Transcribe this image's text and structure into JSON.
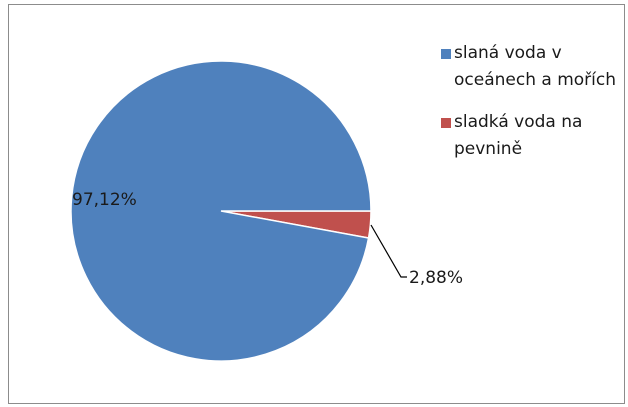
{
  "chart_data": {
    "type": "pie",
    "categories": [
      "slaná voda v oceánech a mořích",
      "sladká voda na pevnině"
    ],
    "values": [
      97.12,
      2.88
    ],
    "labels": [
      "97,12%",
      "2,88%"
    ],
    "colors": [
      "#4f81bd",
      "#c0504d"
    ],
    "legend_position": "right"
  }
}
